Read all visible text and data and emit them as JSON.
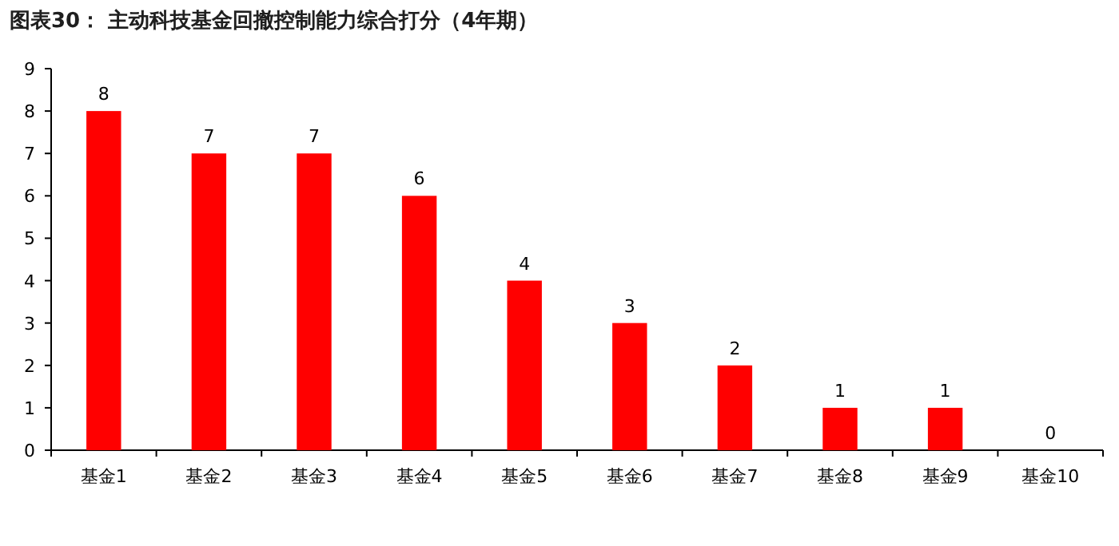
{
  "chart_data": {
    "type": "bar",
    "title": "图表30：  主动科技基金回撤控制能力综合打分（4年期）",
    "categories": [
      "基金1",
      "基金2",
      "基金3",
      "基金4",
      "基金5",
      "基金6",
      "基金7",
      "基金8",
      "基金9",
      "基金10"
    ],
    "values": [
      8,
      7,
      7,
      6,
      4,
      3,
      2,
      1,
      1,
      0
    ],
    "color": "#ff0000",
    "ylim": [
      0,
      9
    ],
    "yticks": [
      0,
      1,
      2,
      3,
      4,
      5,
      6,
      7,
      8,
      9
    ],
    "data_labels": true
  }
}
